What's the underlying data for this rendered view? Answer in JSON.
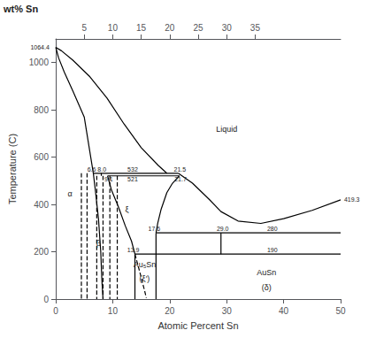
{
  "chart_data": {
    "type": "line",
    "xlabel": "Atomic Percent Sn",
    "ylabel": "Temperature (C)",
    "x2label": "wt% Sn",
    "xlim": [
      0,
      50
    ],
    "ylim": [
      0,
      1100
    ],
    "xticks": [
      0,
      10,
      20,
      30,
      40,
      50
    ],
    "yticks": [
      0,
      200,
      400,
      600,
      800,
      1000
    ],
    "x2lim": [
      0,
      50
    ],
    "x2ticks": [
      5,
      10,
      15,
      20,
      25,
      30,
      35
    ],
    "grid": false,
    "color": "black",
    "series": [
      {
        "x": [
          0,
          1,
          3,
          6,
          9,
          12,
          15,
          18,
          19.5
        ],
        "values": [
          1064.4,
          1050,
          1010,
          940,
          850,
          740,
          640,
          565,
          532
        ]
      },
      {
        "x": [
          0,
          0.5,
          1.5,
          3,
          5,
          6.6
        ],
        "values": [
          1064.4,
          1020,
          960,
          880,
          770,
          532
        ]
      },
      {
        "x": [
          21.5,
          24,
          27,
          29,
          32,
          36,
          40,
          45,
          50
        ],
        "values": [
          532,
          490,
          420,
          370,
          330,
          320,
          340,
          375,
          419.3
        ]
      },
      {
        "x": [
          6.6,
          21.5
        ],
        "values": [
          532,
          532
        ]
      },
      {
        "x": [
          9.1,
          21.7
        ],
        "values": [
          521,
          521
        ]
      },
      {
        "x": [
          17.6,
          50
        ],
        "values": [
          280,
          280
        ]
      },
      {
        "x": [
          13.9,
          50
        ],
        "values": [
          190,
          190
        ]
      },
      {
        "x": [
          6.6,
          7.0,
          7.5,
          7.9,
          8.1,
          8.3
        ],
        "values": [
          532,
          450,
          340,
          200,
          80,
          0
        ]
      },
      {
        "x": [
          8.0,
          8.0
        ],
        "values": [
          521,
          532
        ]
      },
      {
        "x": [
          4.5,
          4.5
        ],
        "values": [
          532,
          0
        ],
        "line_style": "dashed"
      },
      {
        "x": [
          5.5,
          5.5
        ],
        "values": [
          532,
          0
        ],
        "line_style": "dashed"
      },
      {
        "x": [
          7.2,
          7.2
        ],
        "values": [
          521,
          0
        ],
        "line_style": "dashed"
      },
      {
        "x": [
          8.3,
          8.3
        ],
        "values": [
          521,
          0
        ],
        "line_style": "dashed"
      },
      {
        "x": [
          9.5,
          9.5
        ],
        "values": [
          521,
          0
        ],
        "line_style": "dashed"
      },
      {
        "x": [
          10.8,
          10.8
        ],
        "values": [
          521,
          0
        ],
        "line_style": "dashed"
      },
      {
        "x": [
          9.1,
          9.8,
          11.0,
          12.2,
          13.3,
          13.9
        ],
        "values": [
          521,
          460,
          390,
          310,
          245,
          190
        ]
      },
      {
        "x": [
          21.7,
          20.5,
          19.5,
          18.5,
          17.9,
          17.6
        ],
        "values": [
          521,
          490,
          450,
          380,
          320,
          280
        ]
      },
      {
        "x": [
          13.9,
          13.9
        ],
        "values": [
          0,
          190
        ]
      },
      {
        "x": [
          17.6,
          17.6
        ],
        "values": [
          0,
          280
        ]
      },
      {
        "x": [
          13.9,
          14.3,
          14.8,
          15.2,
          15.6,
          15.9
        ],
        "values": [
          190,
          155,
          110,
          72,
          35,
          5
        ],
        "line_style": "dashed"
      },
      {
        "x": [
          29.0,
          29.0
        ],
        "values": [
          190,
          280
        ]
      }
    ],
    "annotations": [
      {
        "text": "1064.4",
        "x": -0.8,
        "y": 1064.4
      },
      {
        "text": "6.6",
        "x": 6.3,
        "y": 536
      },
      {
        "text": "8.0",
        "x": 8.1,
        "y": 536
      },
      {
        "text": "532",
        "x": 13.5,
        "y": 536
      },
      {
        "text": "21.5",
        "x": 21.8,
        "y": 536
      },
      {
        "text": "9.1",
        "x": 9.3,
        "y": 524
      },
      {
        "text": "521",
        "x": 13.5,
        "y": 524
      },
      {
        "text": "21.7",
        "x": 21.9,
        "y": 524
      },
      {
        "text": "17.6",
        "x": 17.3,
        "y": 283
      },
      {
        "text": "29.0",
        "x": 29.3,
        "y": 283
      },
      {
        "text": "280",
        "x": 38,
        "y": 283
      },
      {
        "text": "13.9",
        "x": 13.6,
        "y": 193
      },
      {
        "text": "190",
        "x": 38,
        "y": 193
      },
      {
        "text": "419.3",
        "x": 50.3,
        "y": 419.3
      },
      {
        "text": "Liquid",
        "x": 30,
        "y": 700
      },
      {
        "text": "α",
        "x": 2.5,
        "y": 430
      },
      {
        "text": "β",
        "x": 7.5,
        "y": 220
      },
      {
        "text": "ξ",
        "x": 12.5,
        "y": 360
      },
      {
        "text": "Au₅Sn",
        "x": 15.6,
        "y": 130
      },
      {
        "text": "(ξ′)",
        "x": 15.6,
        "y": 108
      },
      {
        "text": "AuSn",
        "x": 37,
        "y": 95
      },
      {
        "text": "(δ)",
        "x": 37,
        "y": 70
      }
    ]
  }
}
